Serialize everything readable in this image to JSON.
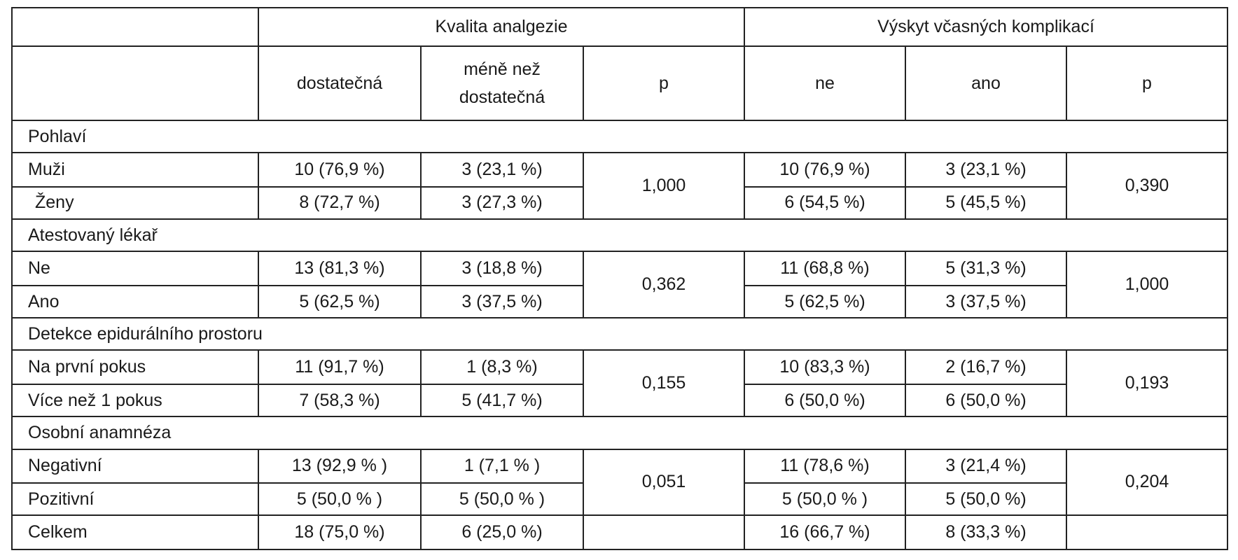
{
  "header": {
    "group_analgesia": "Kvalita analgezie",
    "group_complications": "Výskyt včasných komplikací",
    "col_sufficient": "dostatečná",
    "col_less_line1": "méně než",
    "col_less_line2": "dostatečná",
    "col_p1": "p",
    "col_no": "ne",
    "col_yes": "ano",
    "col_p2": "p"
  },
  "sections": [
    {
      "title": "Pohlaví",
      "p_analgesia": "1,000",
      "p_complications": "0,390",
      "rows": [
        {
          "label": "Muži",
          "sufficient": "10 (76,9 %)",
          "less": "3 (23,1 %)",
          "no": "10 (76,9 %)",
          "yes": "3 (23,1 %)"
        },
        {
          "label": "Ženy",
          "sufficient": "8 (72,7 %)",
          "less": "3 (27,3 %)",
          "no": "6 (54,5 %)",
          "yes": "5 (45,5 %)"
        }
      ]
    },
    {
      "title": "Atestovaný lékař",
      "p_analgesia": "0,362",
      "p_complications": "1,000",
      "rows": [
        {
          "label": "Ne",
          "sufficient": "13 (81,3 %)",
          "less": "3 (18,8 %)",
          "no": "11 (68,8 %)",
          "yes": "5 (31,3 %)"
        },
        {
          "label": "Ano",
          "sufficient": "5 (62,5 %)",
          "less": "3 (37,5 %)",
          "no": "5 (62,5 %)",
          "yes": "3 (37,5 %)"
        }
      ]
    },
    {
      "title": "Detekce epidurálního prostoru",
      "p_analgesia": "0,155",
      "p_complications": "0,193",
      "rows": [
        {
          "label": "Na první pokus",
          "sufficient": "11 (91,7 %)",
          "less": "1 (8,3 %)",
          "no": "10 (83,3 %)",
          "yes": "2 (16,7 %)"
        },
        {
          "label": "Více než 1 pokus",
          "sufficient": "7 (58,3 %)",
          "less": "5 (41,7 %)",
          "no": "6 (50,0 %)",
          "yes": "6 (50,0 %)"
        }
      ]
    },
    {
      "title": "Osobní anamnéza",
      "p_analgesia": "0,051",
      "p_complications": "0,204",
      "rows": [
        {
          "label": "Negativní",
          "sufficient": "13 (92,9 % )",
          "less": "1 (7,1 % )",
          "no": "11 (78,6 %)",
          "yes": "3 (21,4 %)"
        },
        {
          "label": "Pozitivní",
          "sufficient": "5 (50,0 % )",
          "less": "5 (50,0 % )",
          "no": "5 (50,0 % )",
          "yes": "5 (50,0 %)"
        }
      ]
    }
  ],
  "total": {
    "label": "Celkem",
    "sufficient": "18 (75,0 %)",
    "less": "6 (25,0 %)",
    "no": "16 (66,7 %)",
    "yes": "8 (33,3 %)"
  }
}
